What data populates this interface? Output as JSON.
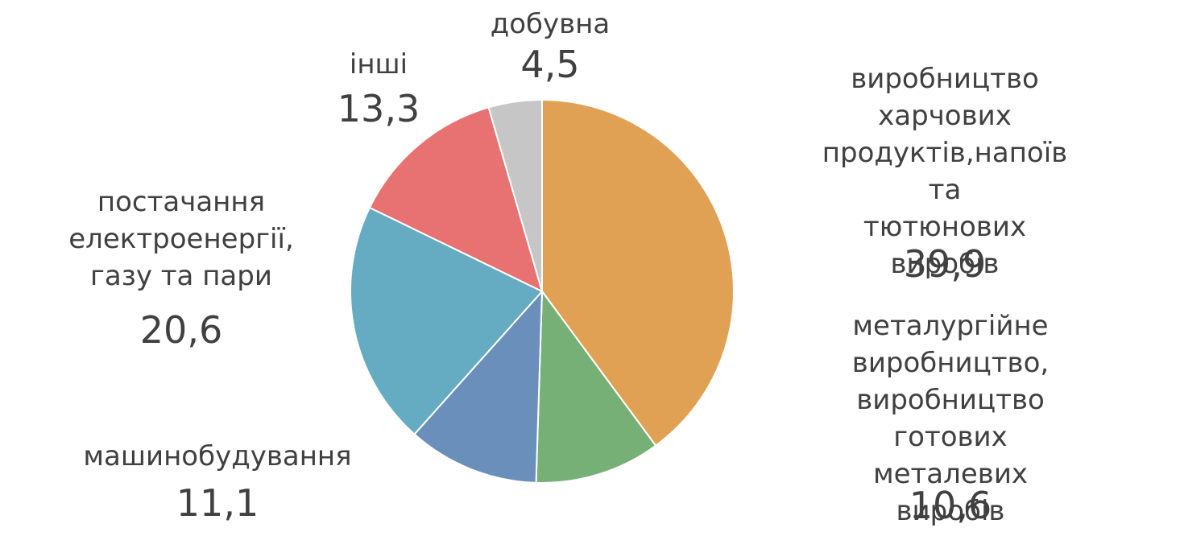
{
  "chart_data": {
    "type": "pie",
    "categories": [
      "виробництво харчових\nпродуктів,напоїв та\nтютюнових виробів",
      "металургійне виробництво,\nвиробництво готових\nметалевих виробів",
      "машинобудування",
      "постачання\nелектроенергії,\nгазу та пари",
      "інші",
      "добувна"
    ],
    "values": [
      39.9,
      10.6,
      11.1,
      20.6,
      13.3,
      4.5
    ],
    "value_labels": [
      "39,9",
      "10,6",
      "11,1",
      "20,6",
      "13,3",
      "4,5"
    ],
    "colors": [
      "#e0a154",
      "#77b077",
      "#6a8fba",
      "#65acc2",
      "#e87172",
      "#c6c6c6"
    ]
  }
}
